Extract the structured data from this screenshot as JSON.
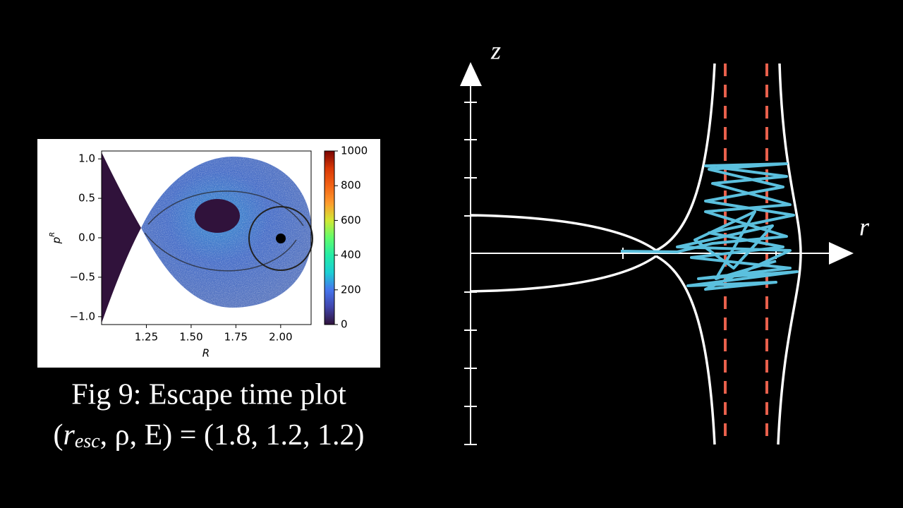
{
  "plot": {
    "xlabel": "R",
    "ylabel": {
      "base": "p",
      "sup": "R"
    },
    "xlim": [
      1.0,
      2.17
    ],
    "ylim": [
      -1.1,
      1.1
    ],
    "xticks": [
      1.25,
      {
        "value": 1.5,
        "label": "1.50"
      },
      1.75,
      {
        "value": 2.0,
        "label": "2.00"
      }
    ],
    "yticks": [
      {
        "value": 1.0,
        "label": "1.0"
      },
      0.5,
      {
        "value": 0.0,
        "label": "0.0"
      },
      {
        "value": -0.5,
        "label": "−0.5"
      },
      {
        "value": -1.0,
        "label": "−1.0"
      }
    ],
    "colorbar": {
      "lim": [
        0,
        1000
      ],
      "ticks": [
        0,
        200,
        400,
        600,
        800,
        1000
      ]
    }
  },
  "caption": {
    "line1": "Fig 9: Escape time plot",
    "line2": {
      "var": "r",
      "sub": "esc",
      "rest": ", ρ, E) = (1.8, 1.2, 1.2)",
      "open": "("
    }
  },
  "diagram": {
    "z_label": "z",
    "r_label": "r"
  }
}
